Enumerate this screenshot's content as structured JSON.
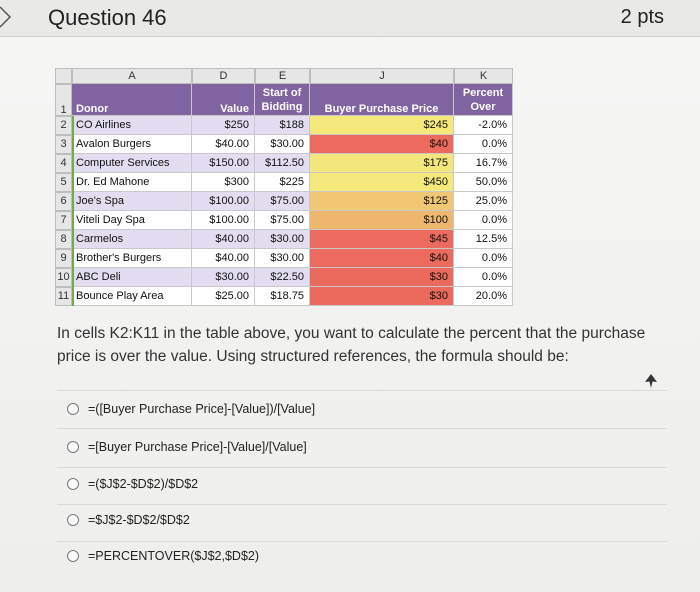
{
  "question": {
    "title": "Question 46",
    "points": "2 pts",
    "text": "In cells K2:K11 in the table above, you want to calculate the percent that the purchase price is over the value. Using structured references, the formula should be:"
  },
  "sheet": {
    "columns": [
      "A",
      "D",
      "E",
      "J",
      "K"
    ],
    "headers": {
      "donor": "Donor",
      "value": "Value",
      "start_line1": "Start of",
      "start_line2": "Bidding",
      "buyer": "Buyer Purchase Price",
      "pct_line1": "Percent",
      "pct_line2": "Over"
    },
    "row_numbers": [
      "1",
      "2",
      "3",
      "4",
      "5",
      "6",
      "7",
      "8",
      "9",
      "10",
      "11"
    ],
    "rows": [
      {
        "donor": "CO Airlines",
        "value": "$250",
        "start": "$188",
        "price": "$245",
        "pct": "-2.0%",
        "color": "#f4e97a"
      },
      {
        "donor": "Avalon Burgers",
        "value": "$40.00",
        "start": "$30.00",
        "price": "$40",
        "pct": "0.0%",
        "color": "#ed6a5e"
      },
      {
        "donor": "Computer Services",
        "value": "$150.00",
        "start": "$112.50",
        "price": "$175",
        "pct": "16.7%",
        "color": "#f2e67c"
      },
      {
        "donor": "Dr. Ed Mahone",
        "value": "$300",
        "start": "$225",
        "price": "$450",
        "pct": "50.0%",
        "color": "#f4e97a"
      },
      {
        "donor": "Joe's Spa",
        "value": "$100.00",
        "start": "$75.00",
        "price": "$125",
        "pct": "25.0%",
        "color": "#f0c873"
      },
      {
        "donor": "Viteli Day Spa",
        "value": "$100.00",
        "start": "$75.00",
        "price": "$100",
        "pct": "0.0%",
        "color": "#efb76d"
      },
      {
        "donor": "Carmelos",
        "value": "$40.00",
        "start": "$30.00",
        "price": "$45",
        "pct": "12.5%",
        "color": "#ed6a5e"
      },
      {
        "donor": "Brother's Burgers",
        "value": "$40.00",
        "start": "$30.00",
        "price": "$40",
        "pct": "0.0%",
        "color": "#ed6a5e"
      },
      {
        "donor": "ABC Deli",
        "value": "$30.00",
        "start": "$22.50",
        "price": "$30",
        "pct": "0.0%",
        "color": "#ec6a5c"
      },
      {
        "donor": "Bounce Play Area",
        "value": "$25.00",
        "start": "$18.75",
        "price": "$30",
        "pct": "20.0%",
        "color": "#ec6a5c"
      }
    ]
  },
  "options": [
    "=([Buyer Purchase Price]-[Value])/[Value]",
    "=[Buyer Purchase Price]-[Value]/[Value]",
    "=($J$2-$D$2)/$D$2",
    "=$J$2-$D$2/$D$2",
    "=PERCENTOVER($J$2,$D$2)"
  ],
  "colors": {
    "header_purple": "#8064a2",
    "band_lavender": "#e2ddf0",
    "green_bar": "#70ad47"
  }
}
